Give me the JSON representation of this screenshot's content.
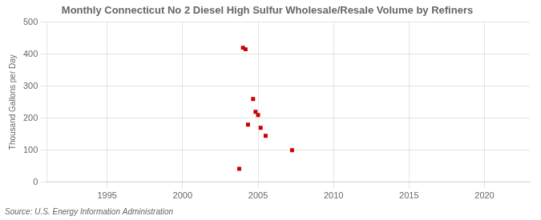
{
  "chart_data": {
    "type": "scatter",
    "title": "Monthly Connecticut No 2 Diesel High Sulfur Wholesale/Resale Volume by Refiners",
    "ylabel": "Thousand Gallons per Day",
    "source": "Source: U.S. Energy Information Administration",
    "x": [
      2003.75,
      2004.0,
      2004.17,
      2004.33,
      2004.67,
      2004.83,
      2005.0,
      2005.17,
      2005.5,
      2007.25
    ],
    "values": [
      42,
      420,
      415,
      180,
      260,
      220,
      210,
      170,
      145,
      100
    ],
    "color": "#cc0000",
    "marker": "square",
    "xlim": [
      1991,
      2023
    ],
    "xticks": [
      1995,
      2000,
      2005,
      2010,
      2015,
      2020
    ],
    "ylim": [
      0,
      500
    ],
    "yticks": [
      0,
      100,
      200,
      300,
      400,
      500
    ],
    "grid": true
  }
}
